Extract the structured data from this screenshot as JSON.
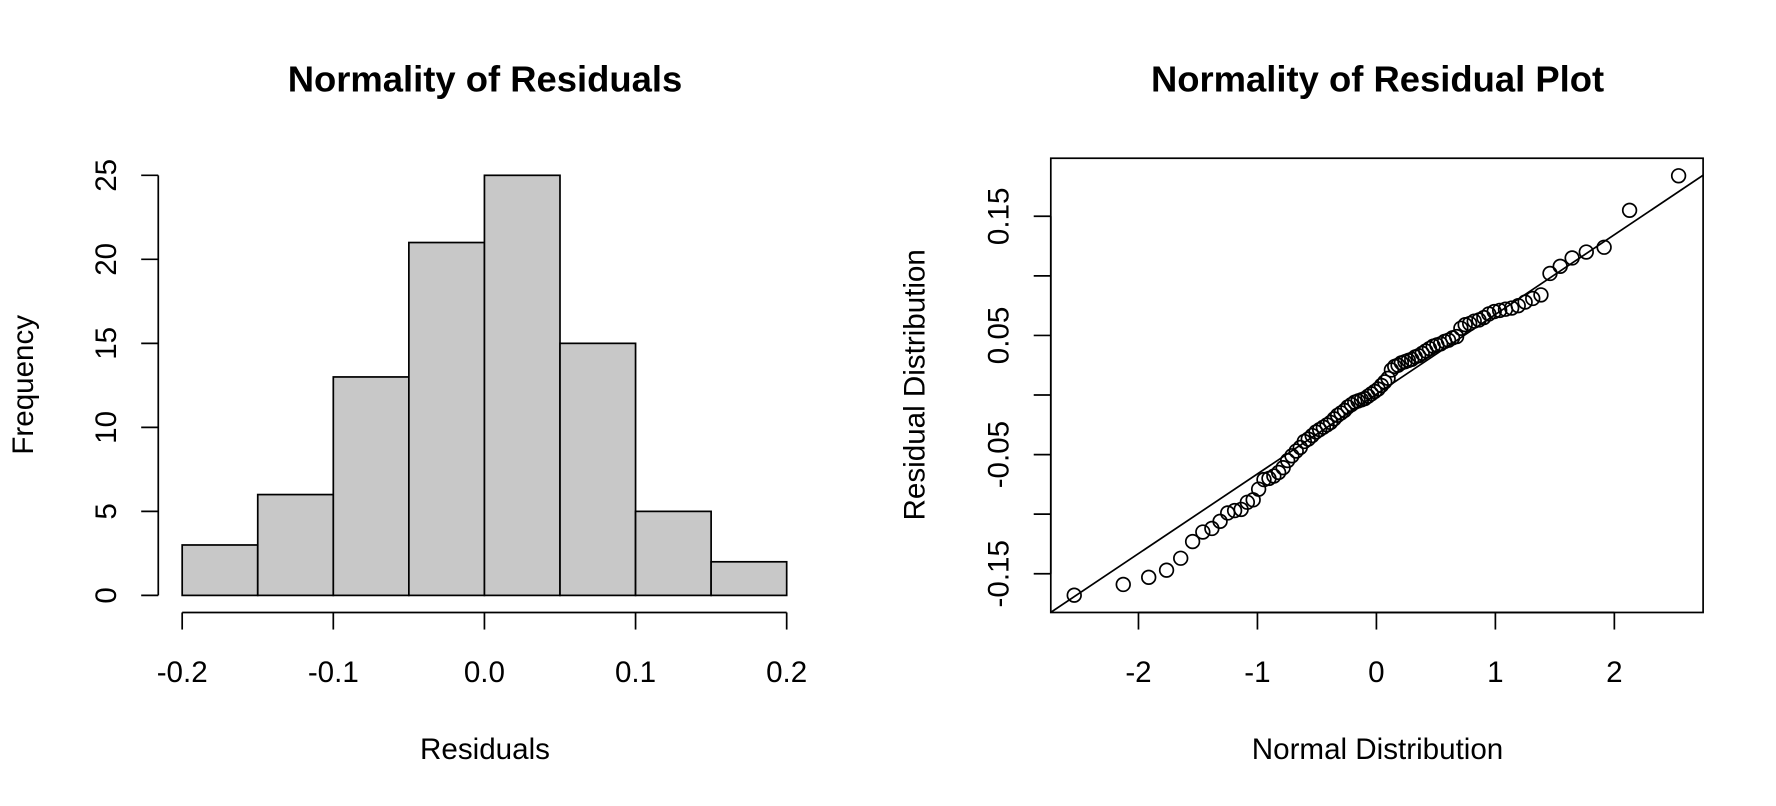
{
  "chart_data": [
    {
      "type": "histogram",
      "title": "Normality of Residuals",
      "xlabel": "Residuals",
      "ylabel": "Frequency",
      "bins": [
        -0.2,
        -0.15,
        -0.1,
        -0.05,
        0,
        0.05,
        0.1,
        0.15,
        0.2
      ],
      "values": [
        3,
        6,
        13,
        21,
        25,
        15,
        5,
        2
      ],
      "color": "#c8c8c8",
      "xlim": [
        -0.2,
        0.2
      ],
      "ylim": [
        0,
        25
      ],
      "xticks": [
        -0.2,
        -0.1,
        {
          "value": 0,
          "label": "0.0"
        },
        0.1,
        0.2
      ],
      "yticks": [
        0,
        5,
        10,
        15,
        20,
        25
      ]
    },
    {
      "type": "scatter",
      "title": "Normality of Residual Plot",
      "xlabel": "Normal Distribution",
      "ylabel": "Residual Distribution",
      "x": [
        -2.54,
        -2.128,
        -1.914,
        -1.764,
        -1.645,
        -1.545,
        -1.459,
        -1.383,
        -1.314,
        -1.25,
        -1.192,
        -1.137,
        -1.085,
        -1.036,
        -0.99,
        -0.945,
        -0.903,
        -0.862,
        -0.822,
        -0.784,
        -0.746,
        -0.71,
        -0.674,
        -0.64,
        -0.606,
        -0.573,
        -0.54,
        -0.508,
        -0.477,
        -0.446,
        -0.415,
        -0.385,
        -0.355,
        -0.326,
        -0.297,
        -0.268,
        -0.24,
        -0.21,
        -0.182,
        -0.154,
        -0.126,
        -0.098,
        -0.07,
        -0.042,
        -0.014,
        0.014,
        0.042,
        0.07,
        0.098,
        0.126,
        0.154,
        0.182,
        0.21,
        0.24,
        0.268,
        0.297,
        0.326,
        0.355,
        0.385,
        0.415,
        0.446,
        0.477,
        0.508,
        0.54,
        0.573,
        0.606,
        0.64,
        0.674,
        0.71,
        0.746,
        0.784,
        0.822,
        0.862,
        0.903,
        0.945,
        0.99,
        1.036,
        1.085,
        1.137,
        1.192,
        1.25,
        1.314,
        1.383,
        1.459,
        1.545,
        1.645,
        1.764,
        1.914,
        2.128,
        2.54
      ],
      "values": [
        -0.168,
        -0.159,
        -0.153,
        -0.147,
        -0.137,
        -0.123,
        -0.115,
        -0.112,
        -0.106,
        -0.099,
        -0.097,
        -0.096,
        -0.09,
        -0.088,
        -0.079,
        -0.071,
        -0.07,
        -0.068,
        -0.065,
        -0.061,
        -0.055,
        -0.051,
        -0.047,
        -0.044,
        -0.039,
        -0.037,
        -0.034,
        -0.031,
        -0.029,
        -0.027,
        -0.025,
        -0.023,
        -0.02,
        -0.017,
        -0.015,
        -0.013,
        -0.01,
        -0.008,
        -0.006,
        -0.005,
        -0.004,
        -0.003,
        -0.001,
        0.001,
        0.003,
        0.005,
        0.008,
        0.011,
        0.014,
        0.021,
        0.024,
        0.025,
        0.027,
        0.028,
        0.029,
        0.03,
        0.032,
        0.033,
        0.035,
        0.037,
        0.039,
        0.041,
        0.042,
        0.043,
        0.045,
        0.046,
        0.048,
        0.049,
        0.056,
        0.059,
        0.06,
        0.062,
        0.063,
        0.065,
        0.068,
        0.07,
        0.071,
        0.072,
        0.073,
        0.075,
        0.078,
        0.081,
        0.084,
        0.102,
        0.108,
        0.115,
        0.12,
        0.124,
        0.155,
        0.184
      ],
      "qqline": {
        "slope": 0.0669,
        "intercept": 0.0007
      },
      "xlim": [
        -2.737,
        2.746
      ],
      "ylim": [
        -0.1825,
        0.1987
      ],
      "xticks": [
        -2,
        -1,
        0,
        1,
        2
      ],
      "yticks": [
        -0.15,
        -0.1,
        -0.05,
        0,
        0.05,
        0.1,
        0.15
      ],
      "ytick_label_step": 2
    }
  ]
}
